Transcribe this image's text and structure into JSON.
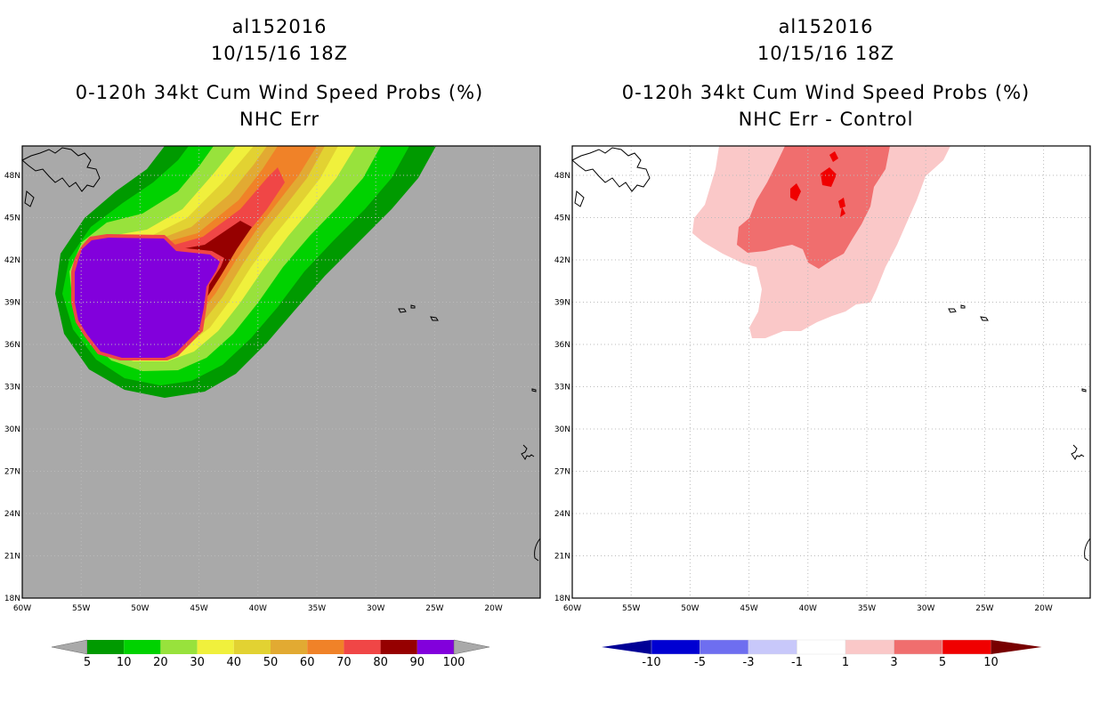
{
  "panels": [
    {
      "storm_id": "al152016",
      "datetime": "10/15/16 18Z",
      "product": "0-120h 34kt Cum Wind Speed Probs (%)",
      "subtitle": "NHC Err",
      "background_color": "#a9a9a9"
    },
    {
      "storm_id": "al152016",
      "datetime": "10/15/16 18Z",
      "product": "0-120h 34kt Cum Wind Speed Probs (%)",
      "subtitle": "NHC Err - Control",
      "background_color": "#ffffff"
    }
  ],
  "axes": {
    "lon_labels": [
      "60W",
      "55W",
      "50W",
      "45W",
      "40W",
      "35W",
      "30W",
      "25W",
      "20W"
    ],
    "lat_labels": [
      "48N",
      "45N",
      "42N",
      "39N",
      "36N",
      "33N",
      "30N",
      "27N",
      "24N",
      "21N",
      "18N"
    ]
  },
  "colorbar_left": {
    "colors": [
      "#009a00",
      "#00d200",
      "#98e23c",
      "#f0f03c",
      "#e2d232",
      "#e2aa32",
      "#f08228",
      "#f04646",
      "#960000",
      "#8200dc"
    ],
    "labels": [
      "5",
      "10",
      "20",
      "30",
      "40",
      "50",
      "60",
      "70",
      "80",
      "90",
      "100"
    ],
    "end_color": "#a9a9a9"
  },
  "colorbar_right": {
    "colors": [
      "#0000d2",
      "#6e6ef0",
      "#c8c8fa",
      "#ffffff",
      "#fac8c8",
      "#f06e6e",
      "#f00000"
    ],
    "labels": [
      "-10",
      "-5",
      "-3",
      "-1",
      "1",
      "3",
      "5",
      "10"
    ],
    "low_end_color": "#000096",
    "high_end_color": "#780000"
  }
}
